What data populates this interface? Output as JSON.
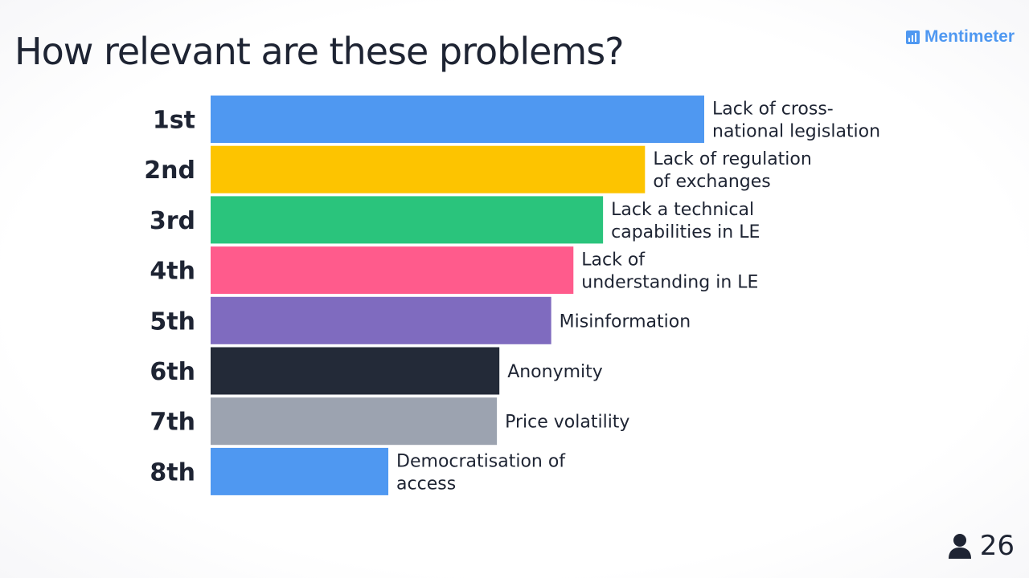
{
  "header": {
    "title": "How relevant are these problems?",
    "brand": "Mentimeter"
  },
  "footer": {
    "participant_count": "26",
    "icon": "person-icon"
  },
  "chart_data": {
    "type": "bar",
    "orientation": "horizontal",
    "title": "How relevant are these problems?",
    "xlabel": "",
    "ylabel": "",
    "grid": false,
    "legend": "none",
    "categories": [
      "1st",
      "2nd",
      "3rd",
      "4th",
      "5th",
      "6th",
      "7th",
      "8th"
    ],
    "labels": [
      [
        "Lack of cross-",
        "national legislation"
      ],
      [
        "Lack of regulation",
        "of exchanges"
      ],
      [
        "Lack a technical",
        "capabilities in LE"
      ],
      [
        "Lack of",
        "understanding in LE"
      ],
      [
        "Misinformation"
      ],
      [
        "Anonymity"
      ],
      [
        "Price volatility"
      ],
      [
        "Democratisation of",
        "access"
      ]
    ],
    "values": [
      100,
      88,
      79.5,
      73.5,
      69,
      58.5,
      58,
      36
    ],
    "xlim": [
      0,
      100
    ],
    "colors": [
      "#4f98f1",
      "#fdc400",
      "#2ac47c",
      "#ff5b8c",
      "#7f6bbf",
      "#232a38",
      "#9ca3b0",
      "#4f98f1"
    ]
  }
}
